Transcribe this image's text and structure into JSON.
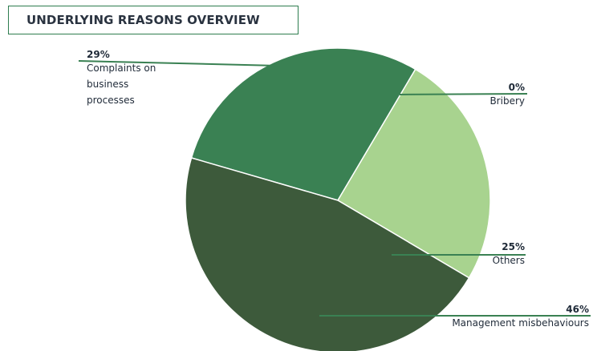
{
  "chart_data": {
    "type": "pie",
    "title": "UNDERLYING REASONS OVERVIEW",
    "slices": [
      {
        "label": "Complaints on business processes",
        "label_lines": [
          "Complaints on",
          "business",
          "processes"
        ],
        "value": 29,
        "value_label": "29%",
        "color": "#3a8153"
      },
      {
        "label": "Bribery",
        "label_lines": [
          "Bribery"
        ],
        "value": 0,
        "value_label": "0%",
        "color": "#8fc57e"
      },
      {
        "label": "Others",
        "label_lines": [
          "Others"
        ],
        "value": 25,
        "value_label": "25%",
        "color": "#a8d38f"
      },
      {
        "label": "Management misbehaviours",
        "label_lines": [
          "Management misbehaviours"
        ],
        "value": 46,
        "value_label": "46%",
        "color": "#3d5a3b"
      }
    ]
  }
}
